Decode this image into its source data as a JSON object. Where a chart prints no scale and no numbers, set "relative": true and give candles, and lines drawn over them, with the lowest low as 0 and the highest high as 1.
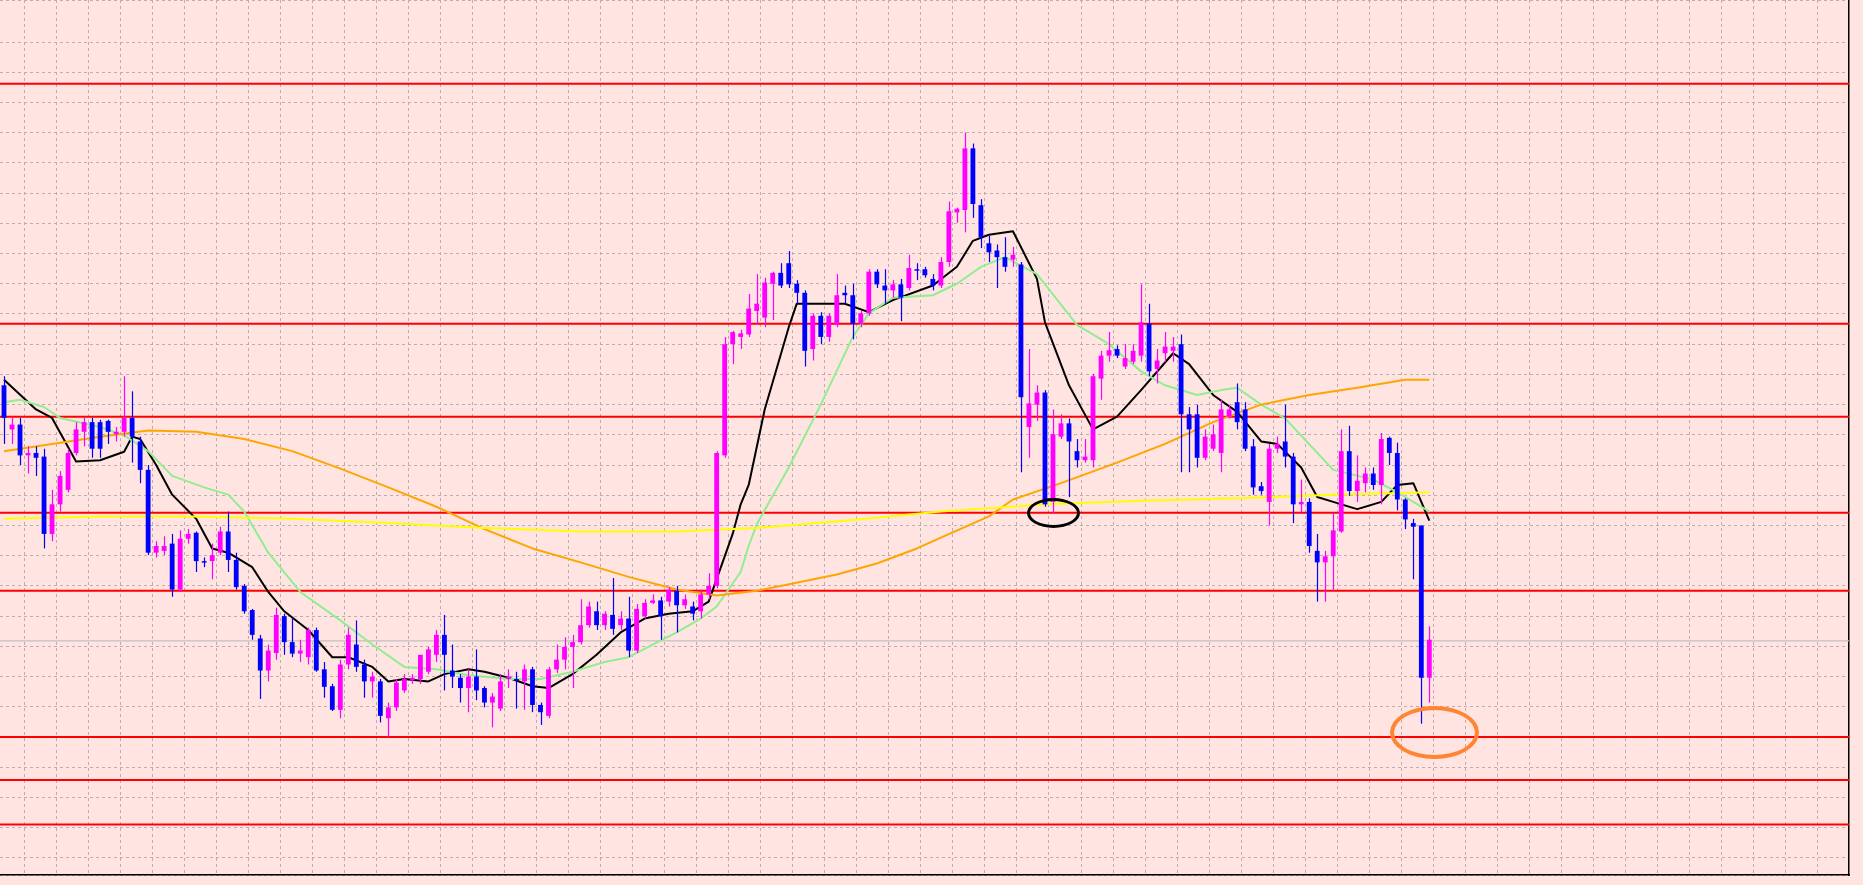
{
  "chart_data": {
    "type": "candlestick",
    "relative": true,
    "grid": true,
    "categories": [
      null,
      null,
      null,
      null,
      null,
      null,
      null,
      null,
      null,
      null,
      null,
      null,
      null,
      null,
      null,
      null,
      null,
      null,
      null,
      null,
      null,
      null,
      null,
      null,
      null,
      null,
      null,
      null,
      null,
      null,
      null,
      null,
      null,
      null,
      null,
      null,
      null,
      null,
      null,
      null,
      null,
      null,
      null,
      null,
      null,
      null,
      null,
      null,
      null,
      null,
      null,
      null,
      null,
      null,
      null,
      null,
      null,
      null,
      null,
      null,
      null,
      null,
      null,
      null,
      null,
      null,
      null,
      null,
      null,
      null,
      null,
      null,
      null,
      null,
      null,
      null,
      null,
      null,
      null,
      null,
      null,
      null,
      null,
      null,
      null,
      null,
      null,
      null,
      null,
      null,
      null,
      null,
      null,
      null,
      null,
      null,
      null,
      null,
      null,
      null,
      null,
      null,
      null,
      null,
      null,
      null,
      null,
      null,
      null,
      null,
      null,
      null,
      null,
      null,
      null,
      null,
      null,
      null,
      null,
      null,
      null,
      null,
      null,
      null,
      null,
      null,
      null,
      null,
      null,
      null,
      null,
      null,
      null,
      null,
      null,
      null,
      null,
      null,
      null,
      null,
      null,
      null,
      null,
      null,
      null,
      null,
      null,
      null,
      null,
      null,
      null,
      null,
      null,
      null,
      null,
      null,
      null,
      null,
      null,
      null,
      null,
      null,
      null,
      null,
      null,
      null,
      null,
      null,
      null,
      null,
      null,
      null,
      null,
      null,
      null,
      null,
      null,
      null,
      null
    ],
    "ohlc": [
      [
        0.582,
        0.597,
        0.485,
        0.528
      ],
      [
        0.509,
        0.528,
        0.485,
        0.517
      ],
      [
        0.517,
        0.528,
        0.45,
        0.466
      ],
      [
        0.466,
        0.481,
        0.436,
        0.47
      ],
      [
        0.47,
        0.481,
        0.432,
        0.462
      ],
      [
        0.464,
        0.477,
        0.312,
        0.336
      ],
      [
        0.336,
        0.409,
        0.324,
        0.385
      ],
      [
        0.385,
        0.44,
        0.373,
        0.432
      ],
      [
        0.409,
        0.477,
        0.405,
        0.47
      ],
      [
        0.47,
        0.521,
        0.466,
        0.509
      ],
      [
        0.505,
        0.528,
        0.481,
        0.521
      ],
      [
        0.521,
        0.528,
        0.462,
        0.477
      ],
      [
        0.521,
        0.525,
        0.462,
        0.477
      ],
      [
        0.523,
        0.525,
        0.485,
        0.505
      ],
      [
        0.501,
        0.513,
        0.489,
        0.505
      ],
      [
        0.505,
        0.597,
        0.497,
        0.528
      ],
      [
        0.528,
        0.572,
        0.454,
        0.497
      ],
      [
        0.489,
        0.497,
        0.42,
        0.442
      ],
      [
        0.442,
        0.45,
        0.301,
        0.305
      ],
      [
        0.305,
        0.324,
        0.297,
        0.316
      ],
      [
        0.308,
        0.332,
        0.301,
        0.316
      ],
      [
        0.32,
        0.336,
        0.232,
        0.244
      ],
      [
        0.244,
        0.342,
        0.24,
        0.328
      ],
      [
        0.328,
        0.344,
        0.32,
        0.336
      ],
      [
        0.338,
        0.34,
        0.273,
        0.291
      ],
      [
        0.291,
        0.297,
        0.281,
        0.289
      ],
      [
        0.291,
        0.32,
        0.261,
        0.301
      ],
      [
        0.305,
        0.348,
        0.301,
        0.34
      ],
      [
        0.34,
        0.373,
        0.273,
        0.293
      ],
      [
        0.293,
        0.305,
        0.244,
        0.248
      ],
      [
        0.25,
        0.253,
        0.204,
        0.208
      ],
      [
        0.21,
        0.212,
        0.161,
        0.169
      ],
      [
        0.163,
        0.169,
        0.063,
        0.11
      ],
      [
        0.11,
        0.153,
        0.092,
        0.143
      ],
      [
        0.139,
        0.214,
        0.128,
        0.202
      ],
      [
        0.2,
        0.204,
        0.136,
        0.157
      ],
      [
        0.157,
        0.196,
        0.132,
        0.138
      ],
      [
        0.138,
        0.161,
        0.124,
        0.143
      ],
      [
        0.132,
        0.181,
        0.12,
        0.177
      ],
      [
        0.177,
        0.181,
        0.108,
        0.11
      ],
      [
        0.112,
        0.124,
        0.065,
        0.083
      ],
      [
        0.084,
        0.088,
        0.043,
        0.045
      ],
      [
        0.045,
        0.128,
        0.031,
        0.12
      ],
      [
        0.12,
        0.181,
        0.112,
        0.169
      ],
      [
        0.153,
        0.193,
        0.108,
        0.116
      ],
      [
        0.12,
        0.128,
        0.065,
        0.092
      ],
      [
        0.092,
        0.108,
        0.065,
        0.1
      ],
      [
        0.092,
        0.096,
        0.024,
        0.035
      ],
      [
        0.031,
        0.057,
        0,
        0.049
      ],
      [
        0.049,
        0.096,
        0.043,
        0.09
      ],
      [
        0.077,
        0.104,
        0.073,
        0.096
      ],
      [
        0.094,
        0.104,
        0.088,
        0.098
      ],
      [
        0.096,
        0.136,
        0.088,
        0.136
      ],
      [
        0.108,
        0.149,
        0.104,
        0.145
      ],
      [
        0.136,
        0.177,
        0.124,
        0.169
      ],
      [
        0.169,
        0.202,
        0.077,
        0.136
      ],
      [
        0.11,
        0.153,
        0.081,
        0.1
      ],
      [
        0.098,
        0.104,
        0.057,
        0.081
      ],
      [
        0.081,
        0.112,
        0.041,
        0.1
      ],
      [
        0.1,
        0.145,
        0.061,
        0.077
      ],
      [
        0.081,
        0.084,
        0.049,
        0.057
      ],
      [
        0.057,
        0.073,
        0.016,
        0.067
      ],
      [
        0.047,
        0.104,
        0.043,
        0.092
      ],
      [
        0.096,
        0.112,
        0.081,
        0.1
      ],
      [
        0.096,
        0.108,
        0.047,
        0.094
      ],
      [
        0.092,
        0.12,
        0.045,
        0.112
      ],
      [
        0.112,
        0.116,
        0.041,
        0.053
      ],
      [
        0.053,
        0.057,
        0.02,
        0.041
      ],
      [
        0.035,
        0.116,
        0.031,
        0.112
      ],
      [
        0.112,
        0.153,
        0.106,
        0.128
      ],
      [
        0.128,
        0.165,
        0.112,
        0.149
      ],
      [
        0.149,
        0.169,
        0.081,
        0.157
      ],
      [
        0.157,
        0.228,
        0.153,
        0.185
      ],
      [
        0.185,
        0.224,
        0.181,
        0.216
      ],
      [
        0.208,
        0.224,
        0.177,
        0.185
      ],
      [
        0.185,
        0.208,
        0.177,
        0.204
      ],
      [
        0.202,
        0.263,
        0.169,
        0.179
      ],
      [
        0.185,
        0.208,
        0.177,
        0.196
      ],
      [
        0.196,
        0.232,
        0.132,
        0.143
      ],
      [
        0.143,
        0.22,
        0.139,
        0.212
      ],
      [
        0.2,
        0.228,
        0.196,
        0.222
      ],
      [
        0.222,
        0.236,
        0.22,
        0.226
      ],
      [
        0.226,
        0.232,
        0.161,
        0.2
      ],
      [
        0.224,
        0.248,
        0.216,
        0.244
      ],
      [
        0.242,
        0.25,
        0.173,
        0.218
      ],
      [
        0.218,
        0.236,
        0.212,
        0.228
      ],
      [
        0.216,
        0.224,
        0.193,
        0.204
      ],
      [
        0.208,
        0.244,
        0.196,
        0.236
      ],
      [
        0.236,
        0.271,
        0.228,
        0.25
      ],
      [
        0.25,
        0.473,
        0.246,
        0.47
      ],
      [
        0.466,
        0.662,
        0.462,
        0.65
      ],
      [
        0.65,
        0.672,
        0.617,
        0.67
      ],
      [
        0.662,
        0.674,
        0.642,
        0.668
      ],
      [
        0.666,
        0.733,
        0.662,
        0.709
      ],
      [
        0.705,
        0.766,
        0.682,
        0.717
      ],
      [
        0.694,
        0.76,
        0.678,
        0.752
      ],
      [
        0.75,
        0.77,
        0.69,
        0.768
      ],
      [
        0.768,
        0.784,
        0.743,
        0.747
      ],
      [
        0.784,
        0.804,
        0.743,
        0.749
      ],
      [
        0.75,
        0.756,
        0.717,
        0.735
      ],
      [
        0.735,
        0.739,
        0.613,
        0.639
      ],
      [
        0.642,
        0.701,
        0.623,
        0.697
      ],
      [
        0.697,
        0.703,
        0.65,
        0.662
      ],
      [
        0.662,
        0.701,
        0.654,
        0.697
      ],
      [
        0.682,
        0.766,
        0.678,
        0.731
      ],
      [
        0.735,
        0.747,
        0.717,
        0.731
      ],
      [
        0.731,
        0.75,
        0.658,
        0.684
      ],
      [
        0.684,
        0.705,
        0.678,
        0.701
      ],
      [
        0.701,
        0.774,
        0.697,
        0.77
      ],
      [
        0.77,
        0.774,
        0.743,
        0.749
      ],
      [
        0.747,
        0.774,
        0.717,
        0.739
      ],
      [
        0.739,
        0.756,
        0.727,
        0.749
      ],
      [
        0.749,
        0.758,
        0.688,
        0.727
      ],
      [
        0.743,
        0.798,
        0.739,
        0.776
      ],
      [
        0.774,
        0.784,
        0.756,
        0.772
      ],
      [
        0.774,
        0.778,
        0.76,
        0.764
      ],
      [
        0.758,
        0.766,
        0.739,
        0.747
      ],
      [
        0.747,
        0.794,
        0.743,
        0.786
      ],
      [
        0.786,
        0.886,
        0.778,
        0.87
      ],
      [
        0.868,
        0.876,
        0.851,
        0.874
      ],
      [
        0.872,
        1,
        0.835,
        0.974
      ],
      [
        0.974,
        0.982,
        0.859,
        0.882
      ],
      [
        0.88,
        0.89,
        0.809,
        0.827
      ],
      [
        0.817,
        0.829,
        0.786,
        0.802
      ],
      [
        0.805,
        0.815,
        0.743,
        0.794
      ],
      [
        0.794,
        0.827,
        0.77,
        0.778
      ],
      [
        0.79,
        0.811,
        0.778,
        0.798
      ],
      [
        0.782,
        0.786,
        0.438,
        0.562
      ],
      [
        0.513,
        0.642,
        0.462,
        0.552
      ],
      [
        0.55,
        0.582,
        0.523,
        0.57
      ],
      [
        0.57,
        0.574,
        0.381,
        0.385
      ],
      [
        0.389,
        0.542,
        0.369,
        0.501
      ],
      [
        0.497,
        0.534,
        0.493,
        0.519
      ],
      [
        0.519,
        0.527,
        0.397,
        0.489
      ],
      [
        0.473,
        0.493,
        0.446,
        0.458
      ],
      [
        0.458,
        0.493,
        0.454,
        0.464
      ],
      [
        0.458,
        0.601,
        0.446,
        0.597
      ],
      [
        0.593,
        0.639,
        0.558,
        0.631
      ],
      [
        0.631,
        0.67,
        0.621,
        0.64
      ],
      [
        0.642,
        0.648,
        0.627,
        0.631
      ],
      [
        0.613,
        0.65,
        0.609,
        0.627
      ],
      [
        0.621,
        0.65,
        0.617,
        0.639
      ],
      [
        0.631,
        0.749,
        0.621,
        0.686
      ],
      [
        0.684,
        0.717,
        0.597,
        0.605
      ],
      [
        0.609,
        0.642,
        0.585,
        0.623
      ],
      [
        0.635,
        0.67,
        0.621,
        0.646
      ],
      [
        0.639,
        0.662,
        0.621,
        0.646
      ],
      [
        0.65,
        0.666,
        0.438,
        0.534
      ],
      [
        0.534,
        0.546,
        0.438,
        0.509
      ],
      [
        0.534,
        0.55,
        0.446,
        0.462
      ],
      [
        0.462,
        0.509,
        0.458,
        0.497
      ],
      [
        0.477,
        0.517,
        0.473,
        0.501
      ],
      [
        0.47,
        0.558,
        0.438,
        0.542
      ],
      [
        0.53,
        0.55,
        0.527,
        0.542
      ],
      [
        0.554,
        0.585,
        0.509,
        0.521
      ],
      [
        0.542,
        0.554,
        0.473,
        0.477
      ],
      [
        0.481,
        0.493,
        0.401,
        0.413
      ],
      [
        0.415,
        0.422,
        0.401,
        0.407
      ],
      [
        0.389,
        0.485,
        0.35,
        0.477
      ],
      [
        0.477,
        0.497,
        0.47,
        0.485
      ],
      [
        0.489,
        0.55,
        0.446,
        0.464
      ],
      [
        0.464,
        0.47,
        0.354,
        0.385
      ],
      [
        0.385,
        0.426,
        0.369,
        0.389
      ],
      [
        0.389,
        0.395,
        0.305,
        0.316
      ],
      [
        0.308,
        0.336,
        0.224,
        0.289
      ],
      [
        0.289,
        0.308,
        0.224,
        0.299
      ],
      [
        0.299,
        0.371,
        0.242,
        0.342
      ],
      [
        0.34,
        0.509,
        0.338,
        0.473
      ],
      [
        0.473,
        0.515,
        0.399,
        0.407
      ],
      [
        0.407,
        0.466,
        0.389,
        0.424
      ],
      [
        0.42,
        0.446,
        0.405,
        0.436
      ],
      [
        0.436,
        0.446,
        0.409,
        0.417
      ],
      [
        0.417,
        0.503,
        0.385,
        0.493
      ],
      [
        0.495,
        0.497,
        0.45,
        0.47
      ],
      [
        0.47,
        0.487,
        0.375,
        0.393
      ],
      [
        0.393,
        0.395,
        0.344,
        0.36
      ],
      [
        0.354,
        0.361,
        0.261,
        0.348
      ],
      [
        0.35,
        0.35,
        0.022,
        0.098
      ],
      [
        0.098,
        0.183,
        0.057,
        0.161
      ]
    ],
    "colors": [
      "#0000ff",
      "#ff00ff",
      "#0000ff",
      "#ff00ff",
      "#0000ff",
      "#0000ff",
      "#ff00ff",
      "#ff00ff",
      "#ff00ff",
      "#ff00ff",
      "#ff00ff",
      "#0000ff",
      "#0000ff",
      "#0000ff",
      "#ff00ff",
      "#ff00ff",
      "#0000ff",
      "#0000ff",
      "#0000ff",
      "#ff00ff",
      "#ff00ff",
      "#0000ff",
      "#ff00ff",
      "#ff00ff",
      "#0000ff",
      "#0000ff",
      "#ff00ff",
      "#ff00ff",
      "#0000ff",
      "#0000ff",
      "#0000ff",
      "#0000ff",
      "#0000ff",
      "#ff00ff",
      "#ff00ff",
      "#0000ff",
      "#0000ff",
      "#ff00ff",
      "#ff00ff",
      "#0000ff",
      "#0000ff",
      "#0000ff",
      "#ff00ff",
      "#ff00ff",
      "#0000ff",
      "#0000ff",
      "#ff00ff",
      "#0000ff",
      "#ff00ff",
      "#ff00ff",
      "#ff00ff",
      "#ff00ff",
      "#ff00ff",
      "#ff00ff",
      "#ff00ff",
      "#0000ff",
      "#0000ff",
      "#0000ff",
      "#ff00ff",
      "#0000ff",
      "#0000ff",
      "#ff00ff",
      "#ff00ff",
      "#ff00ff",
      "#0000ff",
      "#ff00ff",
      "#0000ff",
      "#0000ff",
      "#ff00ff",
      "#ff00ff",
      "#ff00ff",
      "#ff00ff",
      "#ff00ff",
      "#ff00ff",
      "#0000ff",
      "#ff00ff",
      "#0000ff",
      "#ff00ff",
      "#0000ff",
      "#ff00ff",
      "#ff00ff",
      "#ff00ff",
      "#0000ff",
      "#ff00ff",
      "#0000ff",
      "#ff00ff",
      "#0000ff",
      "#ff00ff",
      "#ff00ff",
      "#ff00ff",
      "#ff00ff",
      "#ff00ff",
      "#ff00ff",
      "#ff00ff",
      "#ff00ff",
      "#ff00ff",
      "#ff00ff",
      "#0000ff",
      "#0000ff",
      "#0000ff",
      "#0000ff",
      "#ff00ff",
      "#0000ff",
      "#ff00ff",
      "#ff00ff",
      "#0000ff",
      "#0000ff",
      "#ff00ff",
      "#ff00ff",
      "#0000ff",
      "#0000ff",
      "#ff00ff",
      "#0000ff",
      "#ff00ff",
      "#0000ff",
      "#0000ff",
      "#0000ff",
      "#ff00ff",
      "#ff00ff",
      "#ff00ff",
      "#ff00ff",
      "#0000ff",
      "#0000ff",
      "#0000ff",
      "#0000ff",
      "#0000ff",
      "#ff00ff",
      "#0000ff",
      "#ff00ff",
      "#ff00ff",
      "#0000ff",
      "#ff00ff",
      "#ff00ff",
      "#0000ff",
      "#0000ff",
      "#ff00ff",
      "#ff00ff",
      "#ff00ff",
      "#ff00ff",
      "#0000ff",
      "#ff00ff",
      "#ff00ff",
      "#ff00ff",
      "#0000ff",
      "#ff00ff",
      "#ff00ff",
      "#ff00ff",
      "#0000ff",
      "#0000ff",
      "#0000ff",
      "#ff00ff",
      "#ff00ff",
      "#ff00ff",
      "#ff00ff",
      "#0000ff",
      "#0000ff",
      "#0000ff",
      "#0000ff",
      "#ff00ff",
      "#ff00ff",
      "#0000ff",
      "#0000ff",
      "#ff00ff",
      "#0000ff",
      "#0000ff",
      "#ff00ff",
      "#ff00ff",
      "#ff00ff",
      "#0000ff",
      "#ff00ff",
      "#ff00ff",
      "#0000ff",
      "#ff00ff",
      "#0000ff",
      "#0000ff",
      "#0000ff",
      "#0000ff",
      "#0000ff",
      "#ff00ff"
    ],
    "series": [
      {
        "type": "line",
        "color": "#ffff00",
        "values": [
          0.361,
          null,
          null,
          null,
          null,
          null,
          null,
          null,
          null,
          null,
          null,
          null,
          0.365,
          null,
          null,
          null,
          null,
          null,
          null,
          null,
          null,
          null,
          null,
          null,
          0.365,
          null,
          null,
          null,
          null,
          null,
          null,
          null,
          null,
          null,
          null,
          null,
          0.361,
          null,
          null,
          null,
          null,
          null,
          null,
          null,
          null,
          null,
          null,
          null,
          0.354,
          null,
          null,
          null,
          null,
          null,
          null,
          null,
          null,
          null,
          null,
          null,
          0.346,
          null,
          null,
          null,
          null,
          null,
          null,
          null,
          null,
          null,
          null,
          null,
          0.34,
          null,
          null,
          null,
          null,
          null,
          null,
          null,
          null,
          null,
          null,
          null,
          0.34,
          null,
          null,
          null,
          null,
          null,
          null,
          null,
          null,
          null,
          0.346,
          null,
          null,
          null,
          null,
          null,
          null,
          null,
          null,
          null,
          null,
          0.358,
          null,
          null,
          null,
          null,
          null,
          null,
          null,
          null,
          null,
          null,
          null,
          0.373,
          null,
          null,
          null,
          null,
          null,
          null,
          null,
          null,
          null,
          null,
          null,
          null,
          0.385,
          null,
          null,
          null,
          null,
          null,
          null,
          null,
          null,
          null,
          null,
          null,
          0.391,
          null,
          null,
          null,
          null,
          null,
          null,
          null,
          null,
          null,
          null,
          null,
          0.395,
          null,
          null,
          null,
          null,
          null,
          null,
          null,
          null,
          null,
          null,
          null,
          0.401,
          null,
          null,
          null,
          null,
          null,
          null,
          null,
          null,
          null,
          null,
          null,
          0.405
        ]
      },
      {
        "type": "line",
        "color": "#ffa500",
        "values": [
          0.473,
          null,
          null,
          null,
          null,
          null,
          0.485,
          null,
          null,
          null,
          null,
          null,
          0.497,
          null,
          null,
          null,
          null,
          null,
          0.507,
          null,
          null,
          null,
          null,
          null,
          0.505,
          null,
          null,
          null,
          null,
          null,
          0.493,
          null,
          null,
          null,
          null,
          null,
          0.473,
          null,
          null,
          null,
          null,
          null,
          0.444,
          null,
          null,
          null,
          null,
          null,
          0.413,
          null,
          null,
          null,
          null,
          null,
          0.381,
          null,
          null,
          null,
          null,
          null,
          0.344,
          null,
          null,
          null,
          null,
          null,
          0.312,
          null,
          null,
          null,
          null,
          null,
          0.289,
          null,
          null,
          null,
          null,
          null,
          0.265,
          null,
          null,
          null,
          null,
          null,
          0.244,
          null,
          null,
          null,
          null,
          0.234,
          null,
          null,
          null,
          null,
          0.242,
          null,
          null,
          null,
          null,
          null,
          null,
          null,
          null,
          null,
          0.269,
          null,
          null,
          null,
          null,
          0.287,
          null,
          null,
          null,
          null,
          0.312,
          null,
          null,
          0.33,
          null,
          null,
          null,
          null,
          null,
          0.365,
          null,
          null,
          0.393,
          null,
          null,
          null,
          null,
          null,
          0.42,
          null,
          null,
          null,
          null,
          null,
          null,
          0.454,
          null,
          null,
          null,
          null,
          null,
          0.485,
          null,
          null,
          null,
          null,
          null,
          0.521,
          null,
          null,
          null,
          null,
          null,
          0.55,
          null,
          null,
          null,
          null,
          null,
          0.566,
          null,
          null,
          null,
          null,
          null,
          0.578,
          null,
          null,
          null,
          null,
          null,
          0.591,
          null,
          null,
          0.591
        ]
      },
      {
        "type": "line",
        "color": "#90ee90",
        "values": [
          0.554,
          null,
          0.558,
          null,
          null,
          0.546,
          null,
          0.528,
          null,
          null,
          null,
          null,
          0.513,
          null,
          null,
          0.499,
          null,
          null,
          0.473,
          null,
          null,
          0.432,
          null,
          null,
          null,
          0.413,
          null,
          null,
          0.401,
          null,
          0.373,
          null,
          null,
          0.305,
          null,
          null,
          null,
          0.24,
          null,
          null,
          null,
          null,
          0.193,
          null,
          null,
          null,
          0.153,
          null,
          null,
          null,
          0.116,
          null,
          null,
          null,
          0.112,
          null,
          null,
          null,
          0.102,
          null,
          null,
          null,
          null,
          0.096,
          null,
          null,
          null,
          0.096,
          null,
          null,
          null,
          0.108,
          null,
          null,
          null,
          0.124,
          null,
          null,
          0.132,
          null,
          null,
          0.153,
          null,
          null,
          0.173,
          null,
          null,
          0.196,
          null,
          0.216,
          null,
          null,
          0.273,
          0.316,
          0.352,
          null,
          null,
          null,
          0.446,
          null,
          null,
          null,
          0.55,
          null,
          null,
          null,
          0.662,
          null,
          0.701,
          null,
          null,
          0.727,
          null,
          null,
          null,
          null,
          0.731,
          null,
          null,
          0.75,
          null,
          null,
          0.778,
          null,
          null,
          0.794,
          null,
          null,
          null,
          0.766,
          null,
          null,
          null,
          null,
          0.682,
          null,
          null,
          null,
          0.65,
          null,
          null,
          null,
          0.605,
          null,
          null,
          0.582,
          null,
          null,
          null,
          0.566,
          null,
          null,
          0.574,
          null,
          0.578,
          null,
          null,
          0.55,
          null,
          null,
          0.527,
          null,
          null,
          null,
          null,
          null,
          0.442,
          null,
          null,
          null,
          null,
          0.426,
          null,
          null,
          0.405,
          null,
          null,
          null,
          0.373
        ]
      },
      {
        "type": "line",
        "color": "#000000",
        "values": [
          0.591,
          null,
          null,
          null,
          0.542,
          null,
          0.528,
          null,
          null,
          0.456,
          null,
          null,
          0.458,
          null,
          null,
          0.472,
          0.497,
          0.493,
          null,
          0.45,
          null,
          0.401,
          null,
          null,
          0.361,
          null,
          0.312,
          null,
          0.305,
          null,
          null,
          0.281,
          null,
          0.24,
          null,
          0.208,
          null,
          null,
          0.177,
          null,
          null,
          0.132,
          null,
          0.132,
          null,
          null,
          0.116,
          null,
          0.092,
          null,
          0.096,
          null,
          null,
          0.092,
          null,
          0.104,
          null,
          null,
          0.112,
          null,
          0.108,
          null,
          null,
          0.098,
          null,
          null,
          0.084,
          null,
          0.081,
          null,
          null,
          0.104,
          null,
          null,
          0.136,
          null,
          null,
          0.173,
          null,
          null,
          0.196,
          null,
          null,
          0.204,
          null,
          null,
          0.208,
          null,
          0.224,
          null,
          null,
          0.336,
          0.385,
          0.417,
          null,
          0.542,
          null,
          null,
          0.678,
          0.717,
          null,
          null,
          null,
          null,
          null,
          0.717,
          null,
          null,
          0.703,
          null,
          null,
          0.723,
          null,
          null,
          null,
          null,
          0.747,
          null,
          null,
          0.778,
          null,
          0.821,
          null,
          0.831,
          null,
          null,
          0.837,
          null,
          null,
          0.758,
          0.686,
          null,
          null,
          0.582,
          null,
          null,
          0.509,
          null,
          null,
          0.53,
          null,
          null,
          0.574,
          null,
          null,
          null,
          0.635,
          null,
          0.617,
          null,
          null,
          0.566,
          null,
          null,
          0.538,
          null,
          null,
          0.489,
          null,
          0.485,
          null,
          null,
          0.446,
          null,
          0.397,
          null,
          0.389,
          null,
          null,
          0.377,
          null,
          null,
          0.389,
          null,
          0.417,
          null,
          0.42,
          null,
          0.358
        ]
      }
    ],
    "ref_lines": [
      {
        "axis": "y",
        "value": 1.081,
        "color": "#ff0000"
      },
      {
        "axis": "y",
        "value": 0.684,
        "color": "#ff0000"
      },
      {
        "axis": "y",
        "value": 0.53,
        "color": "#ff0000"
      },
      {
        "axis": "y",
        "value": 0.371,
        "color": "#ff0000"
      },
      {
        "axis": "y",
        "value": 0.242,
        "color": "#ff0000"
      },
      {
        "axis": "y",
        "value": 0.159,
        "color": "#c0c0c0"
      },
      {
        "axis": "y",
        "value": 0,
        "color": "#ff0000"
      },
      {
        "axis": "y",
        "value": -0.071,
        "color": "#ff0000"
      },
      {
        "axis": "y",
        "value": -0.145,
        "color": "#ff0000"
      }
    ]
  }
}
